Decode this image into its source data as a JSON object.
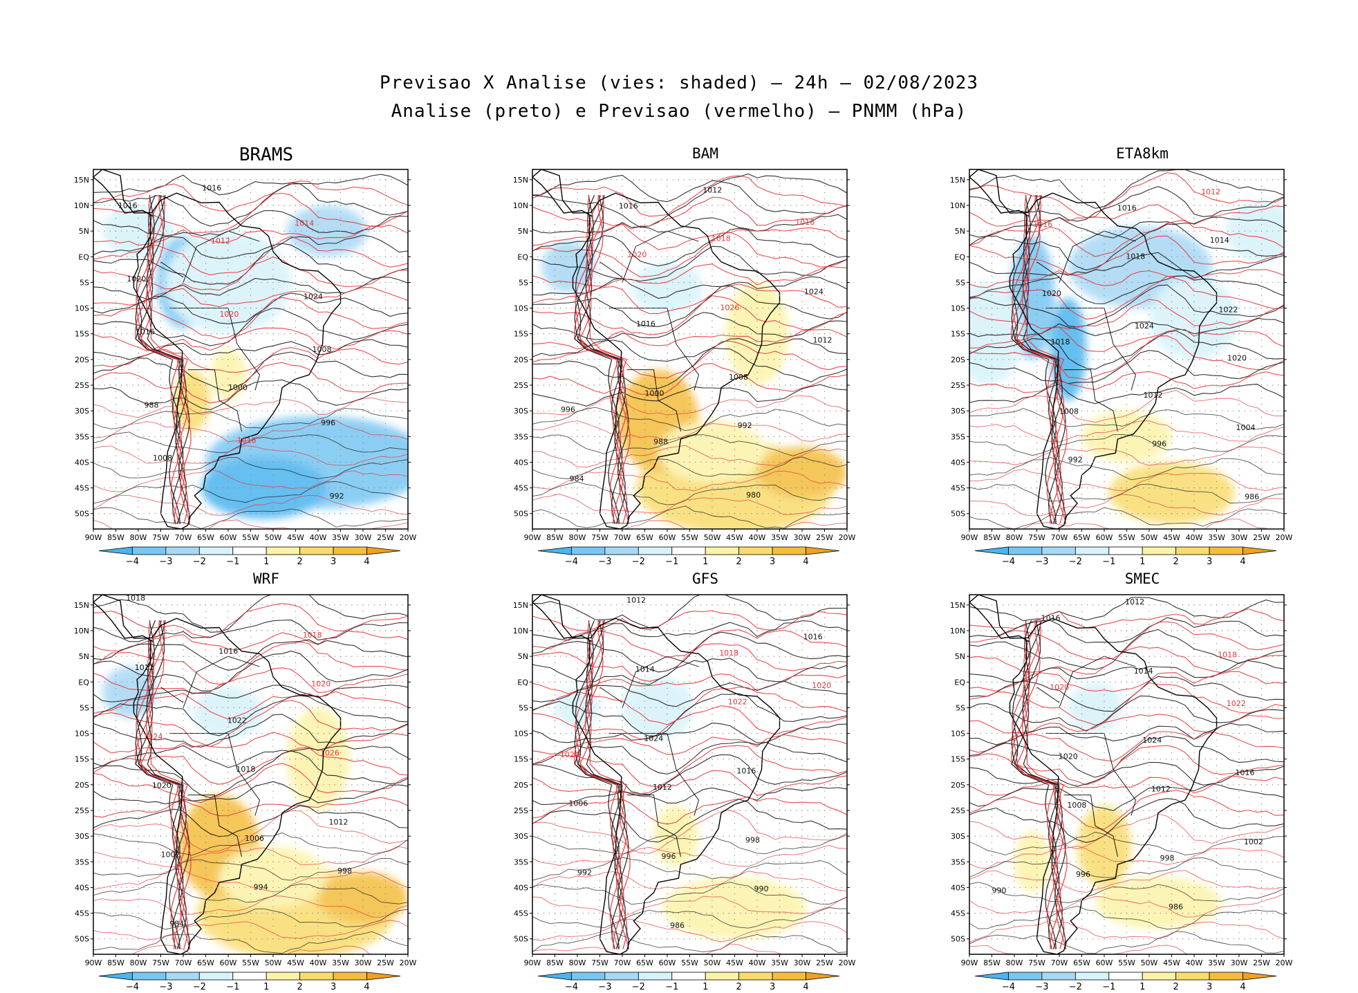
{
  "figure": {
    "title_line1": "Previsao X Analise (vies: shaded) — 24h — 02/08/2023",
    "title_line2": "Analise (preto) e Previsao (vermelho) — PNMM (hPa)"
  },
  "axes": {
    "lat_ticks": [
      "15N",
      "10N",
      "5N",
      "EQ",
      "5S",
      "10S",
      "15S",
      "20S",
      "25S",
      "30S",
      "35S",
      "40S",
      "45S",
      "50S"
    ],
    "lon_ticks": [
      "90W",
      "85W",
      "80W",
      "75W",
      "70W",
      "65W",
      "60W",
      "55W",
      "50W",
      "45W",
      "40W",
      "35W",
      "30W",
      "25W",
      "20W"
    ]
  },
  "colorbar": {
    "labels": [
      "−4",
      "−3",
      "−2",
      "−1",
      "1",
      "2",
      "3",
      "4"
    ],
    "colors": [
      "#4bb4ee",
      "#78c6f2",
      "#a8d8f4",
      "#d6f2fa",
      "#ffffff",
      "#fbf3a8",
      "#f8dc6e",
      "#f4bd3c",
      "#f1a020"
    ]
  },
  "colors": {
    "analysis_line": "#1a1a1a",
    "forecast_line": "#e8363a",
    "coast": "#000000",
    "grid": "#8c8c8c"
  },
  "panels": [
    {
      "name": "BRAMS",
      "bias": "mixed-south-negative",
      "labels": [
        {
          "t": "1016",
          "c": "a"
        },
        {
          "t": "1016",
          "c": "a"
        },
        {
          "t": "1014",
          "c": "f"
        },
        {
          "t": "1012",
          "c": "f"
        },
        {
          "t": "1020",
          "c": "a"
        },
        {
          "t": "1024",
          "c": "a"
        },
        {
          "t": "1020",
          "c": "f"
        },
        {
          "t": "1016",
          "c": "a"
        },
        {
          "t": "1008",
          "c": "a"
        },
        {
          "t": "1000",
          "c": "a"
        },
        {
          "t": "988",
          "c": "a"
        },
        {
          "t": "996",
          "c": "a"
        },
        {
          "t": "1018",
          "c": "f"
        },
        {
          "t": "1008",
          "c": "a"
        },
        {
          "t": "992",
          "c": "a"
        }
      ]
    },
    {
      "name": "BAM",
      "bias": "positive-south",
      "labels": [
        {
          "t": "1012",
          "c": "a"
        },
        {
          "t": "1016",
          "c": "a"
        },
        {
          "t": "1016",
          "c": "f"
        },
        {
          "t": "1018",
          "c": "f"
        },
        {
          "t": "1020",
          "c": "f"
        },
        {
          "t": "1024",
          "c": "a"
        },
        {
          "t": "1026",
          "c": "f"
        },
        {
          "t": "1016",
          "c": "a"
        },
        {
          "t": "1012",
          "c": "a"
        },
        {
          "t": "1008",
          "c": "a"
        },
        {
          "t": "1000",
          "c": "a"
        },
        {
          "t": "996",
          "c": "a"
        },
        {
          "t": "992",
          "c": "a"
        },
        {
          "t": "988",
          "c": "a"
        },
        {
          "t": "984",
          "c": "a"
        },
        {
          "t": "980",
          "c": "a"
        }
      ]
    },
    {
      "name": "ETA8km",
      "bias": "negative-north",
      "labels": [
        {
          "t": "1012",
          "c": "f"
        },
        {
          "t": "1016",
          "c": "a"
        },
        {
          "t": "1016",
          "c": "f"
        },
        {
          "t": "1014",
          "c": "a"
        },
        {
          "t": "1018",
          "c": "a"
        },
        {
          "t": "1020",
          "c": "a"
        },
        {
          "t": "1022",
          "c": "a"
        },
        {
          "t": "1024",
          "c": "a"
        },
        {
          "t": "1018",
          "c": "a"
        },
        {
          "t": "1020",
          "c": "a"
        },
        {
          "t": "1012",
          "c": "a"
        },
        {
          "t": "1008",
          "c": "a"
        },
        {
          "t": "1004",
          "c": "a"
        },
        {
          "t": "996",
          "c": "a"
        },
        {
          "t": "992",
          "c": "a"
        },
        {
          "t": "986",
          "c": "a"
        }
      ]
    },
    {
      "name": "WRF",
      "bias": "positive-south",
      "labels": [
        {
          "t": "1018",
          "c": "a"
        },
        {
          "t": "1018",
          "c": "f"
        },
        {
          "t": "1016",
          "c": "a"
        },
        {
          "t": "1012",
          "c": "a"
        },
        {
          "t": "1020",
          "c": "f"
        },
        {
          "t": "1022",
          "c": "a"
        },
        {
          "t": "1024",
          "c": "f"
        },
        {
          "t": "1026",
          "c": "f"
        },
        {
          "t": "1018",
          "c": "a"
        },
        {
          "t": "1020",
          "c": "a"
        },
        {
          "t": "1012",
          "c": "a"
        },
        {
          "t": "1006",
          "c": "a"
        },
        {
          "t": "1002",
          "c": "a"
        },
        {
          "t": "998",
          "c": "a"
        },
        {
          "t": "994",
          "c": "a"
        },
        {
          "t": "984",
          "c": "a"
        }
      ]
    },
    {
      "name": "GFS",
      "bias": "weak",
      "labels": [
        {
          "t": "1012",
          "c": "a"
        },
        {
          "t": "1016",
          "c": "a"
        },
        {
          "t": "1018",
          "c": "f"
        },
        {
          "t": "1014",
          "c": "a"
        },
        {
          "t": "1020",
          "c": "f"
        },
        {
          "t": "1022",
          "c": "f"
        },
        {
          "t": "1024",
          "c": "a"
        },
        {
          "t": "1026",
          "c": "f"
        },
        {
          "t": "1016",
          "c": "a"
        },
        {
          "t": "1012",
          "c": "a"
        },
        {
          "t": "1006",
          "c": "a"
        },
        {
          "t": "998",
          "c": "a"
        },
        {
          "t": "996",
          "c": "a"
        },
        {
          "t": "992",
          "c": "a"
        },
        {
          "t": "990",
          "c": "a"
        },
        {
          "t": "986",
          "c": "a"
        }
      ]
    },
    {
      "name": "SMEC",
      "bias": "weak-positive",
      "labels": [
        {
          "t": "1012",
          "c": "a"
        },
        {
          "t": "1016",
          "c": "a"
        },
        {
          "t": "1018",
          "c": "f"
        },
        {
          "t": "1014",
          "c": "a"
        },
        {
          "t": "1020",
          "c": "f"
        },
        {
          "t": "1022",
          "c": "f"
        },
        {
          "t": "1024",
          "c": "a"
        },
        {
          "t": "1020",
          "c": "a"
        },
        {
          "t": "1016",
          "c": "a"
        },
        {
          "t": "1012",
          "c": "a"
        },
        {
          "t": "1008",
          "c": "a"
        },
        {
          "t": "1002",
          "c": "a"
        },
        {
          "t": "998",
          "c": "a"
        },
        {
          "t": "996",
          "c": "a"
        },
        {
          "t": "990",
          "c": "a"
        },
        {
          "t": "986",
          "c": "a"
        }
      ]
    }
  ]
}
